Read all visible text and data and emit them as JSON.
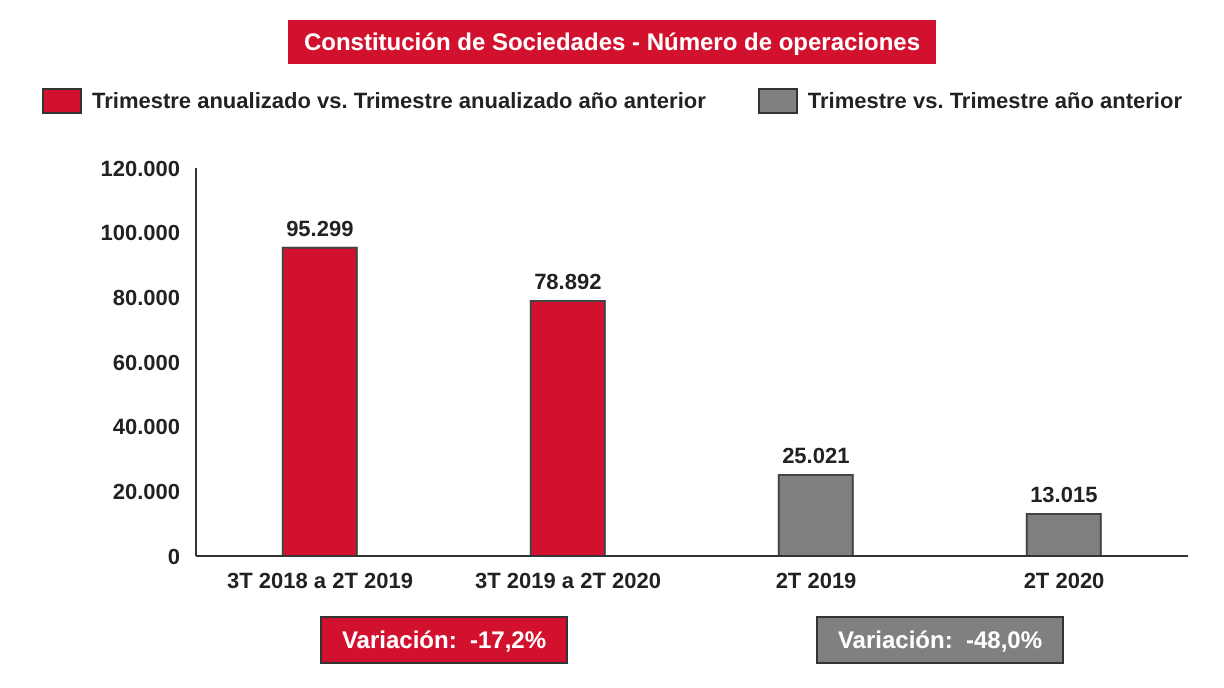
{
  "chart_data": {
    "type": "bar",
    "title": "Constitución de Sociedades - Número de operaciones",
    "categories": [
      "3T 2018 a 2T 2019",
      "3T 2019 a 2T 2020",
      "2T 2019",
      "2T 2020"
    ],
    "series": [
      {
        "name": "Trimestre anualizado vs. Trimestre anualizado año anterior",
        "color": "#d2112e",
        "values": [
          95299,
          78892,
          null,
          null
        ],
        "value_labels": [
          "95.299",
          "78.892",
          null,
          null
        ]
      },
      {
        "name": "Trimestre vs. Trimestre año anterior",
        "color": "#808080",
        "values": [
          null,
          null,
          25021,
          13015
        ],
        "value_labels": [
          null,
          null,
          "25.021",
          "13.015"
        ]
      }
    ],
    "ylim": [
      0,
      120000
    ],
    "yticks": [
      {
        "value": 0,
        "label": "0"
      },
      {
        "value": 20000,
        "label": "20.000"
      },
      {
        "value": 40000,
        "label": "40.000"
      },
      {
        "value": 60000,
        "label": "60.000"
      },
      {
        "value": 80000,
        "label": "80.000"
      },
      {
        "value": 100000,
        "label": "100.000"
      },
      {
        "value": 120000,
        "label": "120.000"
      }
    ],
    "legend": "top",
    "grid": false,
    "annotations": [
      "Variación:  -17,2%",
      "Variación:  -48,0%"
    ]
  }
}
